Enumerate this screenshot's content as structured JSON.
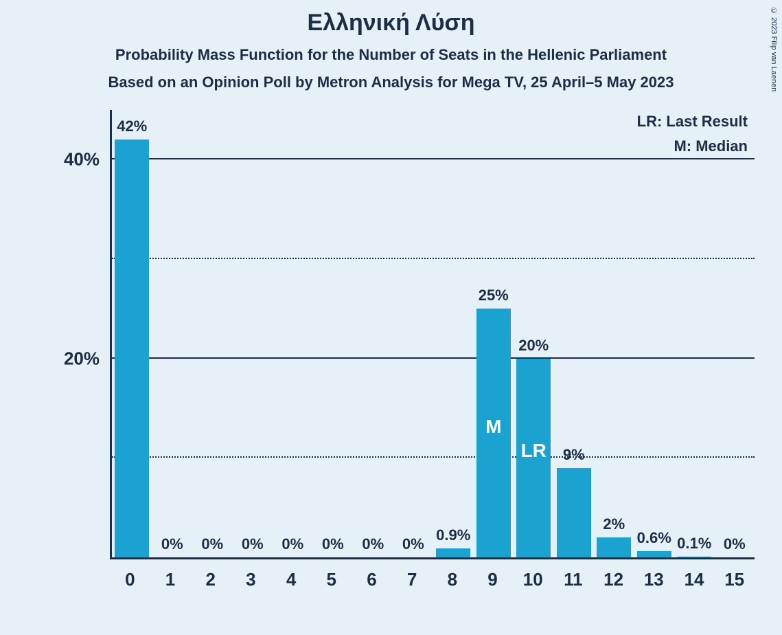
{
  "copyright": "© 2023 Filip van Laenen",
  "title": "Ελληνική Λύση",
  "subtitle1": "Probability Mass Function for the Number of Seats in the Hellenic Parliament",
  "subtitle2": "Based on an Opinion Poll by Metron Analysis for Mega TV, 25 April–5 May 2023",
  "legend": {
    "lr": "LR: Last Result",
    "m": "M: Median"
  },
  "chart": {
    "type": "bar",
    "bar_color": "#1aa3d0",
    "background_color": "#e5f0f7",
    "axis_color": "#1a2e44",
    "text_color": "#1a2e44",
    "title_fontsize": 34,
    "subtitle_fontsize": 22,
    "axis_label_fontsize": 26,
    "value_label_fontsize": 22,
    "ymax_pct": 45,
    "y_solid_ticks": [
      20,
      40
    ],
    "y_dotted_ticks": [
      10,
      30
    ],
    "y_tick_labels": {
      "20": "20%",
      "40": "40%"
    },
    "x_categories": [
      "0",
      "1",
      "2",
      "3",
      "4",
      "5",
      "6",
      "7",
      "8",
      "9",
      "10",
      "11",
      "12",
      "13",
      "14",
      "15"
    ],
    "values_pct": [
      42,
      0,
      0,
      0,
      0,
      0,
      0,
      0,
      0.9,
      25,
      20,
      9,
      2,
      0.6,
      0.1,
      0
    ],
    "value_labels": [
      "42%",
      "0%",
      "0%",
      "0%",
      "0%",
      "0%",
      "0%",
      "0%",
      "0.9%",
      "25%",
      "20%",
      "9%",
      "2%",
      "0.6%",
      "0.1%",
      "0%"
    ],
    "inner_labels": {
      "9": "M",
      "10": "LR"
    },
    "inner_label_color": "#ffffff",
    "bar_width_ratio": 0.86
  }
}
